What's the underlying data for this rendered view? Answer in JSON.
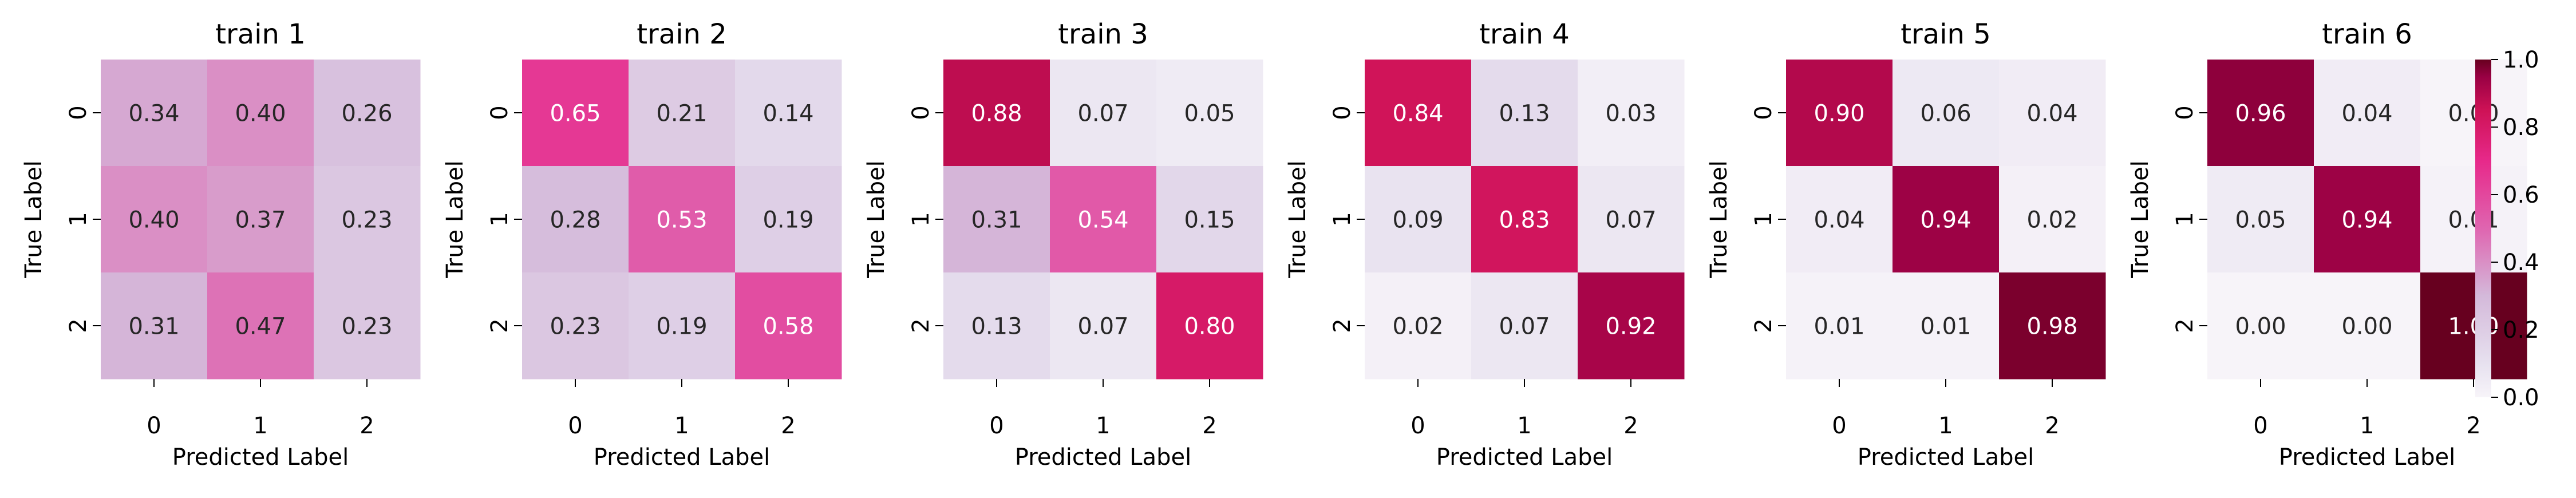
{
  "chart_data": [
    {
      "type": "heatmap",
      "title": "train 1",
      "xlabel": "Predicted Label",
      "ylabel": "True Label",
      "x_tick_labels": [
        "0",
        "1",
        "2"
      ],
      "y_tick_labels": [
        "0",
        "1",
        "2"
      ],
      "values": [
        [
          0.34,
          0.4,
          0.26
        ],
        [
          0.4,
          0.37,
          0.23
        ],
        [
          0.31,
          0.47,
          0.23
        ]
      ],
      "cell_labels": [
        [
          "0.34",
          "0.40",
          "0.26"
        ],
        [
          "0.40",
          "0.37",
          "0.23"
        ],
        [
          "0.31",
          "0.47",
          "0.23"
        ]
      ]
    },
    {
      "type": "heatmap",
      "title": "train 2",
      "xlabel": "Predicted Label",
      "ylabel": "True Label",
      "x_tick_labels": [
        "0",
        "1",
        "2"
      ],
      "y_tick_labels": [
        "0",
        "1",
        "2"
      ],
      "values": [
        [
          0.65,
          0.21,
          0.14
        ],
        [
          0.28,
          0.53,
          0.19
        ],
        [
          0.23,
          0.19,
          0.58
        ]
      ],
      "cell_labels": [
        [
          "0.65",
          "0.21",
          "0.14"
        ],
        [
          "0.28",
          "0.53",
          "0.19"
        ],
        [
          "0.23",
          "0.19",
          "0.58"
        ]
      ]
    },
    {
      "type": "heatmap",
      "title": "train 3",
      "xlabel": "Predicted Label",
      "ylabel": "True Label",
      "x_tick_labels": [
        "0",
        "1",
        "2"
      ],
      "y_tick_labels": [
        "0",
        "1",
        "2"
      ],
      "values": [
        [
          0.88,
          0.07,
          0.05
        ],
        [
          0.31,
          0.54,
          0.15
        ],
        [
          0.13,
          0.07,
          0.8
        ]
      ],
      "cell_labels": [
        [
          "0.88",
          "0.07",
          "0.05"
        ],
        [
          "0.31",
          "0.54",
          "0.15"
        ],
        [
          "0.13",
          "0.07",
          "0.80"
        ]
      ]
    },
    {
      "type": "heatmap",
      "title": "train 4",
      "xlabel": "Predicted Label",
      "ylabel": "True Label",
      "x_tick_labels": [
        "0",
        "1",
        "2"
      ],
      "y_tick_labels": [
        "0",
        "1",
        "2"
      ],
      "values": [
        [
          0.84,
          0.13,
          0.03
        ],
        [
          0.09,
          0.83,
          0.07
        ],
        [
          0.02,
          0.07,
          0.92
        ]
      ],
      "cell_labels": [
        [
          "0.84",
          "0.13",
          "0.03"
        ],
        [
          "0.09",
          "0.83",
          "0.07"
        ],
        [
          "0.02",
          "0.07",
          "0.92"
        ]
      ]
    },
    {
      "type": "heatmap",
      "title": "train 5",
      "xlabel": "Predicted Label",
      "ylabel": "True Label",
      "x_tick_labels": [
        "0",
        "1",
        "2"
      ],
      "y_tick_labels": [
        "0",
        "1",
        "2"
      ],
      "values": [
        [
          0.9,
          0.06,
          0.04
        ],
        [
          0.04,
          0.94,
          0.02
        ],
        [
          0.01,
          0.01,
          0.98
        ]
      ],
      "cell_labels": [
        [
          "0.90",
          "0.06",
          "0.04"
        ],
        [
          "0.04",
          "0.94",
          "0.02"
        ],
        [
          "0.01",
          "0.01",
          "0.98"
        ]
      ]
    },
    {
      "type": "heatmap",
      "title": "train 6",
      "xlabel": "Predicted Label",
      "ylabel": "True Label",
      "x_tick_labels": [
        "0",
        "1",
        "2"
      ],
      "y_tick_labels": [
        "0",
        "1",
        "2"
      ],
      "values": [
        [
          0.96,
          0.04,
          0.0
        ],
        [
          0.05,
          0.94,
          0.01
        ],
        [
          0.0,
          0.0,
          1.0
        ]
      ],
      "cell_labels": [
        [
          "0.96",
          "0.04",
          "0.00"
        ],
        [
          "0.05",
          "0.94",
          "0.01"
        ],
        [
          "0.00",
          "0.00",
          "1.00"
        ]
      ]
    }
  ],
  "colorbar": {
    "range": [
      0.0,
      1.0
    ],
    "ticks": [
      "0.0",
      "0.2",
      "0.4",
      "0.6",
      "0.8",
      "1.0"
    ],
    "colormap_stops": [
      {
        "v": 0.0,
        "color": "#f7f4f9"
      },
      {
        "v": 0.1,
        "color": "#e7e1ef"
      },
      {
        "v": 0.3,
        "color": "#d4b9da"
      },
      {
        "v": 0.5,
        "color": "#df65b0"
      },
      {
        "v": 0.7,
        "color": "#e7298a"
      },
      {
        "v": 0.85,
        "color": "#ce1256"
      },
      {
        "v": 0.95,
        "color": "#980043"
      },
      {
        "v": 1.0,
        "color": "#67001f"
      }
    ]
  }
}
